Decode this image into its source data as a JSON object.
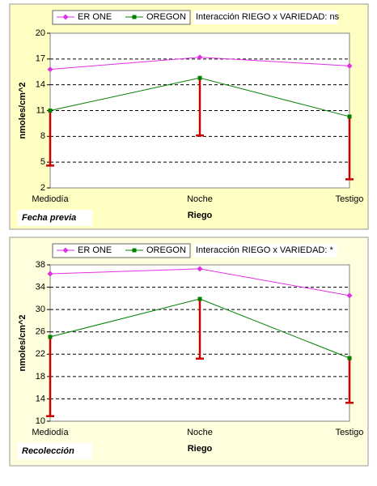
{
  "chart_data": [
    {
      "type": "line",
      "annotation": "Interacción RIEGO x VARIEDAD: ns",
      "panel_label": "Fecha previa",
      "x_label": "Riego",
      "y_label": "nmoles/cm^2",
      "categories": [
        "Mediodía",
        "Noche",
        "Testigo"
      ],
      "series": [
        {
          "name": "ER ONE",
          "color": "#e030e0",
          "marker": "diamond",
          "values": [
            15.8,
            17.2,
            16.2
          ]
        },
        {
          "name": "OREGON",
          "color": "#008000",
          "marker": "square",
          "values": [
            11.0,
            14.8,
            10.3
          ],
          "errors": [
            6.4,
            6.7,
            7.3
          ],
          "error_color": "#cc0000"
        }
      ],
      "ylim": [
        2,
        20
      ],
      "yticks": [
        2,
        5,
        8,
        11,
        14,
        17,
        20
      ],
      "grid": true
    },
    {
      "type": "line",
      "annotation": "Interacción RIEGO x VARIEDAD: *",
      "panel_label": "Recolección",
      "x_label": "Riego",
      "y_label": "nmoles/cm^2",
      "categories": [
        "Mediodía",
        "Noche",
        "Testigo"
      ],
      "series": [
        {
          "name": "ER ONE",
          "color": "#e030e0",
          "marker": "diamond",
          "values": [
            36.4,
            37.3,
            32.5
          ]
        },
        {
          "name": "OREGON",
          "color": "#008000",
          "marker": "square",
          "values": [
            25.1,
            31.9,
            21.3
          ],
          "errors": [
            14.2,
            10.7,
            8.0
          ],
          "error_color": "#cc0000"
        }
      ],
      "ylim": [
        10,
        38
      ],
      "yticks": [
        10,
        14,
        18,
        22,
        26,
        30,
        34,
        38
      ],
      "grid": true
    }
  ]
}
